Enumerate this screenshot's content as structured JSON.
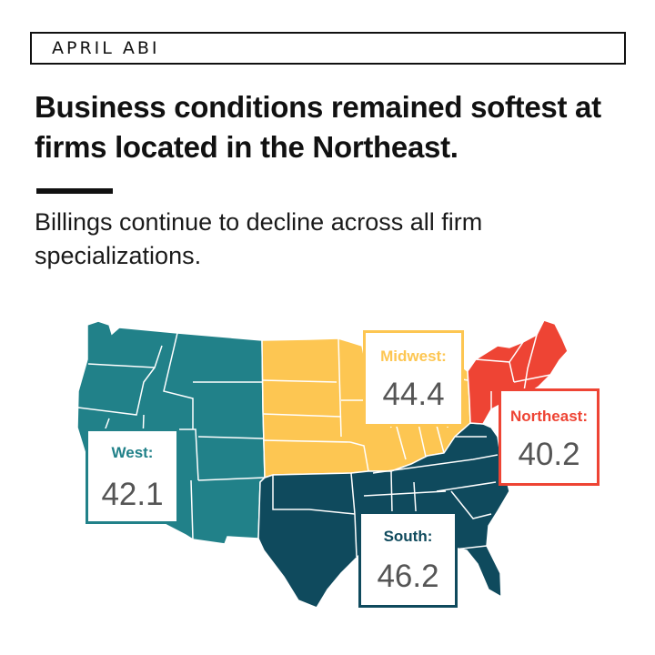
{
  "header": {
    "tag": "APRIL ABI",
    "headline": "Business conditions remained softest at firms located in the Northeast.",
    "subhead": "Billings continue to decline across all firm specializations."
  },
  "colors": {
    "west": "#218189",
    "midwest": "#fdc652",
    "south": "#0f4a5d",
    "northeast": "#ee4434",
    "border": "#ffffff"
  },
  "regions": [
    {
      "id": "west",
      "label": "West:",
      "value": "42.1",
      "color": "#218189"
    },
    {
      "id": "midwest",
      "label": "Midwest:",
      "value": "44.4",
      "color": "#fdc652"
    },
    {
      "id": "south",
      "label": "South:",
      "value": "46.2",
      "color": "#0f4a5d"
    },
    {
      "id": "northeast",
      "label": "Northeast:",
      "value": "40.2",
      "color": "#ee4434"
    }
  ]
}
